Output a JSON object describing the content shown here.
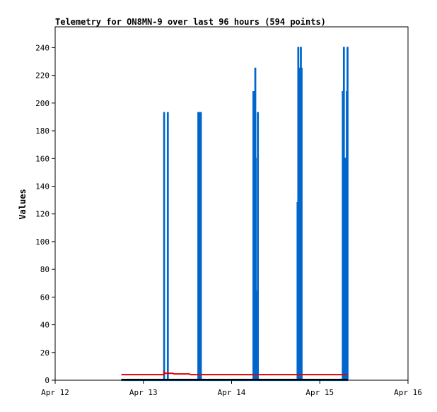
{
  "chart_data": {
    "type": "line",
    "title": "Telemetry for ON8MN-9 over last 96 hours (594 points)",
    "xlabel": "",
    "ylabel": "Values",
    "x_unit": "hours since Apr 12 00:00",
    "xlim": [
      0,
      96
    ],
    "ylim": [
      0,
      255
    ],
    "x_ticks": [
      {
        "value": 0,
        "label": "Apr 12"
      },
      {
        "value": 24,
        "label": "Apr 13"
      },
      {
        "value": 48,
        "label": "Apr 14"
      },
      {
        "value": 72,
        "label": "Apr 15"
      },
      {
        "value": 96,
        "label": "Apr 16"
      }
    ],
    "y_ticks": [
      0,
      20,
      40,
      60,
      80,
      100,
      120,
      140,
      160,
      180,
      200,
      220,
      240
    ],
    "grid": false,
    "series": [
      {
        "color": "#0066cc",
        "points": [
          [
            18.0,
            0
          ],
          [
            29.6,
            0
          ],
          [
            29.6,
            193
          ],
          [
            29.7,
            193
          ],
          [
            29.7,
            0
          ],
          [
            30.6,
            0
          ],
          [
            30.6,
            193
          ],
          [
            30.7,
            193
          ],
          [
            30.7,
            0
          ],
          [
            38.9,
            0
          ],
          [
            38.9,
            193
          ],
          [
            39.0,
            193
          ],
          [
            39.0,
            0
          ],
          [
            39.1,
            0
          ],
          [
            39.1,
            193
          ],
          [
            39.2,
            193
          ],
          [
            39.2,
            80
          ],
          [
            39.3,
            80
          ],
          [
            39.3,
            0
          ],
          [
            39.4,
            0
          ],
          [
            39.4,
            145
          ],
          [
            39.5,
            145
          ],
          [
            39.5,
            0
          ],
          [
            39.6,
            0
          ],
          [
            39.6,
            193
          ],
          [
            39.7,
            193
          ],
          [
            39.7,
            0
          ],
          [
            53.9,
            0
          ],
          [
            53.9,
            208
          ],
          [
            54.0,
            208
          ],
          [
            54.0,
            0
          ],
          [
            54.1,
            0
          ],
          [
            54.1,
            193
          ],
          [
            54.2,
            193
          ],
          [
            54.2,
            112
          ],
          [
            54.3,
            112
          ],
          [
            54.3,
            0
          ],
          [
            54.4,
            0
          ],
          [
            54.4,
            225
          ],
          [
            54.5,
            225
          ],
          [
            54.5,
            160
          ],
          [
            54.6,
            160
          ],
          [
            54.6,
            0
          ],
          [
            54.8,
            0
          ],
          [
            54.8,
            64
          ],
          [
            54.9,
            64
          ],
          [
            54.9,
            0
          ],
          [
            55.1,
            0
          ],
          [
            55.1,
            193
          ],
          [
            55.2,
            193
          ],
          [
            55.2,
            0
          ],
          [
            65.9,
            0
          ],
          [
            65.9,
            128
          ],
          [
            66.0,
            128
          ],
          [
            66.0,
            0
          ],
          [
            66.1,
            0
          ],
          [
            66.1,
            240
          ],
          [
            66.2,
            240
          ],
          [
            66.2,
            0
          ],
          [
            66.4,
            0
          ],
          [
            66.4,
            225
          ],
          [
            66.5,
            225
          ],
          [
            66.5,
            0
          ],
          [
            66.8,
            0
          ],
          [
            66.8,
            240
          ],
          [
            66.9,
            240
          ],
          [
            66.9,
            0
          ],
          [
            67.0,
            0
          ],
          [
            67.0,
            225
          ],
          [
            67.1,
            225
          ],
          [
            67.1,
            0
          ],
          [
            78.2,
            0
          ],
          [
            78.2,
            208
          ],
          [
            78.3,
            208
          ],
          [
            78.3,
            0
          ],
          [
            78.5,
            0
          ],
          [
            78.5,
            240
          ],
          [
            78.6,
            240
          ],
          [
            78.6,
            0
          ],
          [
            78.8,
            0
          ],
          [
            78.8,
            48
          ],
          [
            78.9,
            48
          ],
          [
            78.9,
            0
          ],
          [
            79.0,
            0
          ],
          [
            79.0,
            160
          ],
          [
            79.1,
            160
          ],
          [
            79.1,
            0
          ],
          [
            79.3,
            0
          ],
          [
            79.3,
            208
          ],
          [
            79.4,
            208
          ],
          [
            79.4,
            0
          ],
          [
            79.5,
            0
          ],
          [
            79.5,
            240
          ],
          [
            79.6,
            240
          ],
          [
            79.6,
            0
          ]
        ]
      },
      {
        "color": "#dd0000",
        "points": [
          [
            18.0,
            4
          ],
          [
            29.6,
            4
          ],
          [
            29.6,
            6
          ],
          [
            30.0,
            5
          ],
          [
            32.0,
            5
          ],
          [
            32.4,
            4.5
          ],
          [
            36.5,
            4.5
          ],
          [
            36.8,
            4
          ],
          [
            79.6,
            4
          ]
        ]
      },
      {
        "color": "#000000",
        "points": [
          [
            18.0,
            0.5
          ],
          [
            79.6,
            0.5
          ]
        ]
      }
    ]
  }
}
